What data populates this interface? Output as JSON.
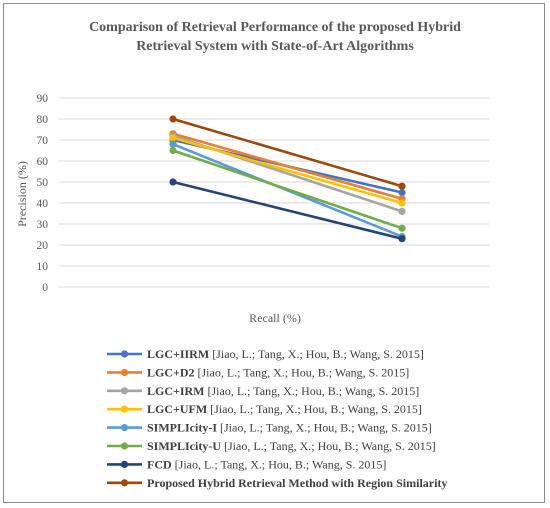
{
  "chart_data": {
    "type": "line",
    "title_lines": [
      "Comparison  of Retrieval Performance of the proposed Hybrid",
      "Retrieval System with State-of-Art Algorithms"
    ],
    "xlabel": "Recall (%)",
    "ylabel": "Precision (%)",
    "ylim": [
      0,
      90
    ],
    "yticks": [
      0,
      10,
      20,
      30,
      40,
      50,
      60,
      70,
      80,
      90
    ],
    "grid": true,
    "legend_position": "bottom",
    "series": [
      {
        "name": "LGC+IIRM",
        "ref": "[Jiao, L.; Tang, X.; Hou, B.; Wang, S. 2015]",
        "color": "#4472c4",
        "values": [
          70,
          45
        ]
      },
      {
        "name": "LGC+D2",
        "ref": "[Jiao, L.; Tang, X.; Hou, B.; Wang, S. 2015]",
        "color": "#ed7d31",
        "values": [
          73,
          42
        ]
      },
      {
        "name": "LGC+IRM",
        "ref": "[Jiao, L.; Tang, X.; Hou, B.; Wang, S. 2015]",
        "color": "#a5a5a5",
        "values": [
          72,
          36
        ]
      },
      {
        "name": "LGC+UFM",
        "ref": "[Jiao, L.; Tang, X.; Hou, B.; Wang, S. 2015]",
        "color": "#ffc000",
        "values": [
          71,
          40
        ]
      },
      {
        "name": "SIMPLIcity-I",
        "ref": "[Jiao, L.; Tang, X.; Hou, B.; Wang, S. 2015]",
        "color": "#5b9bd5",
        "values": [
          68,
          24
        ]
      },
      {
        "name": "SIMPLIcity-U",
        "ref": "[Jiao, L.; Tang, X.; Hou, B.; Wang, S. 2015]",
        "color": "#70ad47",
        "values": [
          65,
          28
        ]
      },
      {
        "name": "FCD",
        "ref": "[Jiao, L.; Tang, X.; Hou, B.; Wang, S. 2015]",
        "color": "#264478",
        "values": [
          50,
          23
        ]
      },
      {
        "name": "Proposed Hybrid Retrieval Method with Region Similarity",
        "ref": "",
        "color": "#9e480e",
        "values": [
          80,
          48
        ]
      }
    ]
  }
}
